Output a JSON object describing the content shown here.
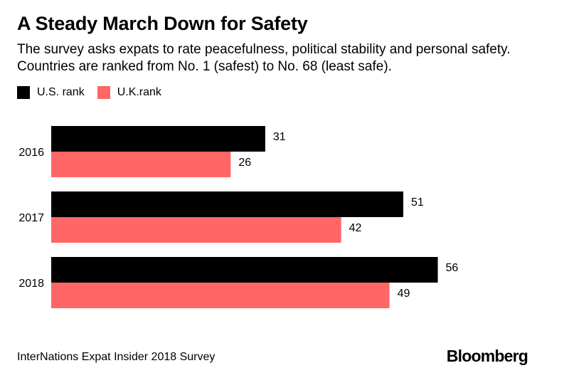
{
  "chart_data": {
    "type": "bar",
    "orientation": "horizontal",
    "title": "A Steady March Down for Safety",
    "subtitle": "The survey asks expats to rate peacefulness, political stability and personal safety. Countries are ranked from No. 1 (safest) to No. 68 (least safe).",
    "categories": [
      "2016",
      "2017",
      "2018"
    ],
    "series": [
      {
        "name": "U.S. rank",
        "values": [
          31,
          51,
          56
        ],
        "color": "#000000"
      },
      {
        "name": "U.K.rank",
        "values": [
          26,
          42,
          49
        ],
        "color": "#ff6666"
      }
    ],
    "xlim": [
      0,
      68
    ],
    "grid": false,
    "legend_position": "top-left",
    "source": "InterNations Expat Insider 2018 Survey",
    "brand": "Bloomberg"
  }
}
